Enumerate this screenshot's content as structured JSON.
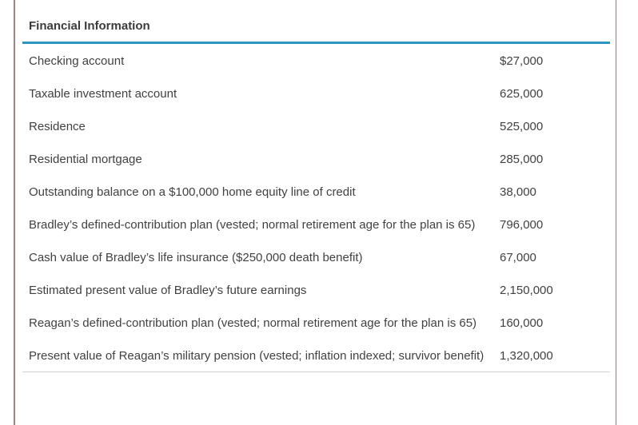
{
  "panel": {
    "title": "Financial Information",
    "accent_color": "#2e94c1",
    "side_border_color": "#a58080",
    "bottom_rule_color": "#d2d2d2",
    "text_color": "#414141"
  },
  "table": {
    "rows": [
      {
        "label": "Checking account",
        "value": "$27,000"
      },
      {
        "label": "Taxable investment account",
        "value": "625,000"
      },
      {
        "label": "Residence",
        "value": "525,000"
      },
      {
        "label": "Residential mortgage",
        "value": "285,000"
      },
      {
        "label": "Outstanding balance on a $100,000 home equity line of credit",
        "value": "38,000"
      },
      {
        "label": "Bradley’s defined-contribution plan (vested; normal retirement age for the plan is 65)",
        "value": "796,000"
      },
      {
        "label": "Cash value of Bradley’s life insurance ($250,000 death benefit)",
        "value": "67,000"
      },
      {
        "label": "Estimated present value of Bradley’s future earnings",
        "value": "2,150,000"
      },
      {
        "label": "Reagan’s defined-contribution plan (vested; normal retirement age for the plan is 65)",
        "value": "160,000"
      },
      {
        "label": "Present value of Reagan’s military pension (vested; inflation indexed; survivor benefit)",
        "value": "1,320,000"
      }
    ]
  }
}
